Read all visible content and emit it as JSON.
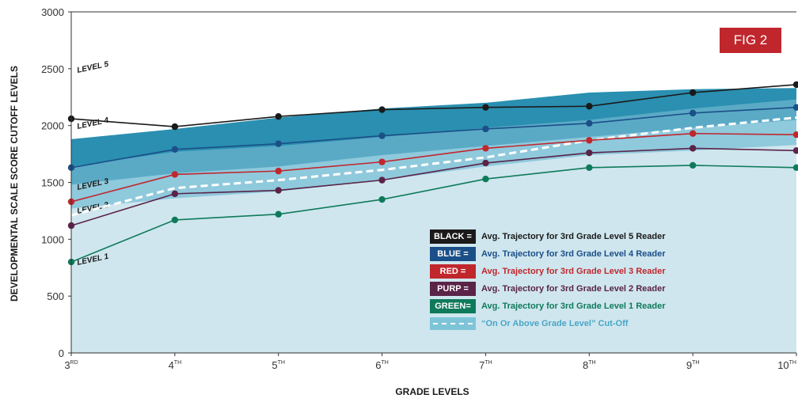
{
  "fig_label": "FIG 2",
  "chart_data": {
    "type": "line",
    "title": "",
    "xlabel": "GRADE LEVELS",
    "ylabel": "DEVELOPMENTAL SCALE SCORE CUTOFF LEVELS",
    "ylim": [
      0,
      3000
    ],
    "yticks": [
      "0",
      "500",
      "1000",
      "1500",
      "2000",
      "2500",
      "3000"
    ],
    "categories": [
      {
        "num": "3",
        "sup": "RD"
      },
      {
        "num": "4",
        "sup": "TH"
      },
      {
        "num": "5",
        "sup": "TH"
      },
      {
        "num": "6",
        "sup": "TH"
      },
      {
        "num": "7",
        "sup": "TH"
      },
      {
        "num": "8",
        "sup": "TH"
      },
      {
        "num": "9",
        "sup": "TH"
      },
      {
        "num": "10",
        "sup": "TH"
      }
    ],
    "bands": [
      {
        "label": "LEVEL 1",
        "upper": [
          1270,
          1360,
          1420,
          1520,
          1640,
          1740,
          1780,
          1830
        ],
        "color": "#cfe6ee"
      },
      {
        "label": "LEVEL 2",
        "upper": [
          1480,
          1580,
          1640,
          1740,
          1820,
          1900,
          1980,
          2050
        ],
        "color": "#8fc9dc"
      },
      {
        "label": "LEVEL 3",
        "upper": [
          1640,
          1770,
          1820,
          1900,
          1980,
          2050,
          2150,
          2230
        ],
        "color": "#5aaac6"
      },
      {
        "label": "LEVEL 4",
        "upper": [
          1880,
          1970,
          2070,
          2150,
          2200,
          2290,
          2320,
          2330
        ],
        "color": "#2a8fb0"
      },
      {
        "label": "LEVEL 5",
        "upper": null,
        "color": "#ffffff"
      }
    ],
    "series": [
      {
        "name": "BLACK",
        "color": "#1a1a1a",
        "values": [
          2060,
          1990,
          2080,
          2140,
          2160,
          2170,
          2290,
          2360
        ]
      },
      {
        "name": "BLUE",
        "color": "#1b4f88",
        "values": [
          1630,
          1790,
          1840,
          1910,
          1970,
          2020,
          2110,
          2160
        ]
      },
      {
        "name": "RED",
        "color": "#c0272d",
        "values": [
          1330,
          1570,
          1600,
          1680,
          1800,
          1870,
          1930,
          1920
        ]
      },
      {
        "name": "PURP",
        "color": "#5a2348",
        "values": [
          1120,
          1400,
          1430,
          1520,
          1670,
          1760,
          1800,
          1780
        ]
      },
      {
        "name": "GREEN",
        "color": "#0f7a5a",
        "values": [
          800,
          1170,
          1220,
          1350,
          1530,
          1630,
          1650,
          1630
        ]
      }
    ],
    "cutoff": {
      "values": [
        1210,
        1450,
        1520,
        1610,
        1720,
        1870,
        1980,
        2070
      ],
      "color": "#ffffff"
    },
    "legend": [
      {
        "key": "BLACK =",
        "text": "Avg. Trajectory for 3rd Grade Level 5 Reader",
        "bg": "#1a1a1a",
        "fg": "#1a1a1a"
      },
      {
        "key": "BLUE =",
        "text": "Avg. Trajectory for 3rd Grade Level 4 Reader",
        "bg": "#1b4f88",
        "fg": "#1b4f88"
      },
      {
        "key": "RED =",
        "text": "Avg. Trajectory for 3rd Grade Level 3 Reader",
        "bg": "#c0272d",
        "fg": "#c0272d"
      },
      {
        "key": "PURP =",
        "text": "Avg. Trajectory for 3rd Grade Level 2 Reader",
        "bg": "#5a2348",
        "fg": "#5a2348"
      },
      {
        "key": "GREEN=",
        "text": "Avg. Trajectory for 3rd Grade Level 1 Reader",
        "bg": "#0f7a5a",
        "fg": "#0f7a5a"
      },
      {
        "key": "",
        "text": "“On Or Above Grade Level” Cut-Off",
        "bg": "#7ec4d8",
        "fg": "#4aa6c6"
      }
    ],
    "legend_placement": "bottom-right",
    "grid": false
  }
}
